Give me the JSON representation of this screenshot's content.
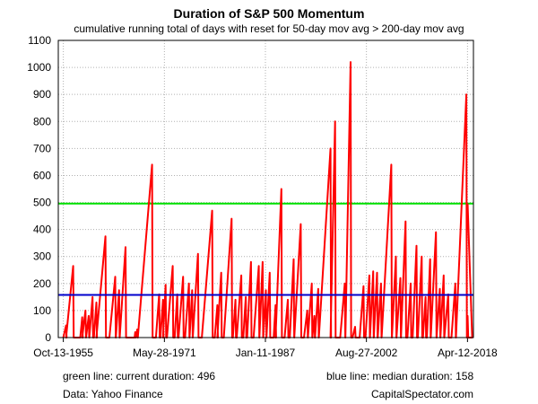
{
  "chart_data": {
    "type": "line",
    "title": "Duration of S&P 500 Momentum",
    "subtitle": "cumulative running total of days with reset for 50-day mov avg > 200-day mov avg",
    "xlabel": "",
    "ylabel": "",
    "xlim": [
      1955.0,
      2019.2
    ],
    "ylim": [
      0,
      1100
    ],
    "yticks": [
      0,
      100,
      200,
      300,
      400,
      500,
      600,
      700,
      800,
      900,
      1000,
      1100
    ],
    "xticks": [
      {
        "x": 1955.78,
        "label": "Oct-13-1955"
      },
      {
        "x": 1971.41,
        "label": "May-28-1971"
      },
      {
        "x": 1987.03,
        "label": "Jan-11-1987"
      },
      {
        "x": 2002.65,
        "label": "Aug-27-2002"
      },
      {
        "x": 2018.28,
        "label": "Apr-12-2018"
      }
    ],
    "grid": true,
    "series": [
      {
        "color": "#ff0000",
        "cycles": [
          [
            1955.78,
            1956.2,
            45
          ],
          [
            1956.2,
            1957.3,
            265
          ],
          [
            1958.4,
            1958.7,
            75
          ],
          [
            1958.7,
            1959.2,
            100
          ],
          [
            1959.3,
            1959.7,
            80
          ],
          [
            1959.8,
            1960.3,
            150
          ],
          [
            1960.5,
            1960.9,
            130
          ],
          [
            1960.9,
            1962.3,
            375
          ],
          [
            1962.9,
            1963.8,
            225
          ],
          [
            1963.9,
            1964.4,
            175
          ],
          [
            1964.5,
            1965.4,
            335
          ],
          [
            1966.8,
            1966.9,
            20
          ],
          [
            1967.0,
            1967.2,
            30
          ],
          [
            1967.3,
            1969.5,
            640
          ],
          [
            1970.1,
            1970.6,
            160
          ],
          [
            1970.8,
            1971.2,
            140
          ],
          [
            1971.2,
            1971.6,
            195
          ],
          [
            1971.8,
            1972.7,
            265
          ],
          [
            1973.0,
            1973.4,
            160
          ],
          [
            1973.6,
            1974.3,
            225
          ],
          [
            1974.6,
            1975.2,
            200
          ],
          [
            1975.3,
            1975.7,
            175
          ],
          [
            1975.8,
            1976.6,
            310
          ],
          [
            1977.2,
            1978.8,
            470
          ],
          [
            1979.2,
            1979.6,
            120
          ],
          [
            1979.6,
            1980.2,
            240
          ],
          [
            1980.6,
            1981.8,
            440
          ],
          [
            1982.0,
            1982.4,
            140
          ],
          [
            1982.6,
            1983.3,
            230
          ],
          [
            1983.6,
            1984.0,
            150
          ],
          [
            1984.2,
            1984.8,
            280
          ],
          [
            1985.2,
            1986.0,
            265
          ],
          [
            1986.1,
            1986.6,
            280
          ],
          [
            1986.7,
            1987.1,
            175
          ],
          [
            1987.2,
            1987.7,
            240
          ],
          [
            1988.3,
            1988.6,
            120
          ],
          [
            1988.6,
            1989.5,
            550
          ],
          [
            1990.0,
            1990.5,
            140
          ],
          [
            1990.8,
            1991.4,
            290
          ],
          [
            1991.5,
            1992.5,
            420
          ],
          [
            1993.0,
            1993.5,
            100
          ],
          [
            1993.6,
            1994.2,
            200
          ],
          [
            1994.3,
            1994.6,
            80
          ],
          [
            1994.7,
            1995.2,
            180
          ],
          [
            1995.3,
            1997.1,
            700
          ],
          [
            1997.1,
            1997.8,
            800
          ],
          [
            1998.6,
            1999.3,
            200
          ],
          [
            1999.4,
            2000.2,
            1020
          ],
          [
            2000.5,
            2000.9,
            40
          ],
          [
            2001.6,
            2002.2,
            190
          ],
          [
            2002.5,
            2003.1,
            230
          ],
          [
            2003.2,
            2003.7,
            245
          ],
          [
            2003.8,
            2004.3,
            240
          ],
          [
            2004.4,
            2004.9,
            200
          ],
          [
            2005.0,
            2006.5,
            640
          ],
          [
            2006.6,
            2007.2,
            300
          ],
          [
            2007.3,
            2007.9,
            220
          ],
          [
            2008.0,
            2008.7,
            430
          ],
          [
            2009.0,
            2009.5,
            200
          ],
          [
            2009.8,
            2010.4,
            340
          ],
          [
            2010.6,
            2011.2,
            300
          ],
          [
            2011.4,
            2011.8,
            150
          ],
          [
            2012.0,
            2012.5,
            290
          ],
          [
            2012.6,
            2013.4,
            390
          ],
          [
            2013.5,
            2014.0,
            180
          ],
          [
            2014.1,
            2014.6,
            230
          ],
          [
            2014.7,
            2015.3,
            160
          ],
          [
            2015.8,
            2016.4,
            200
          ],
          [
            2016.5,
            2018.1,
            900
          ],
          [
            2018.4,
            2018.8,
            80
          ],
          [
            2019.0,
            2020.0,
            496
          ]
        ]
      },
      {
        "color": "#00e000",
        "values": [
          496,
          496
        ]
      },
      {
        "color": "#0000cc",
        "values": [
          158,
          158
        ]
      }
    ],
    "notes": {
      "current": "green line: current duration:  496",
      "median": "blue line: median duration:    158",
      "source": "Data: Yahoo Finance",
      "credit": "CapitalSpectator.com"
    }
  }
}
